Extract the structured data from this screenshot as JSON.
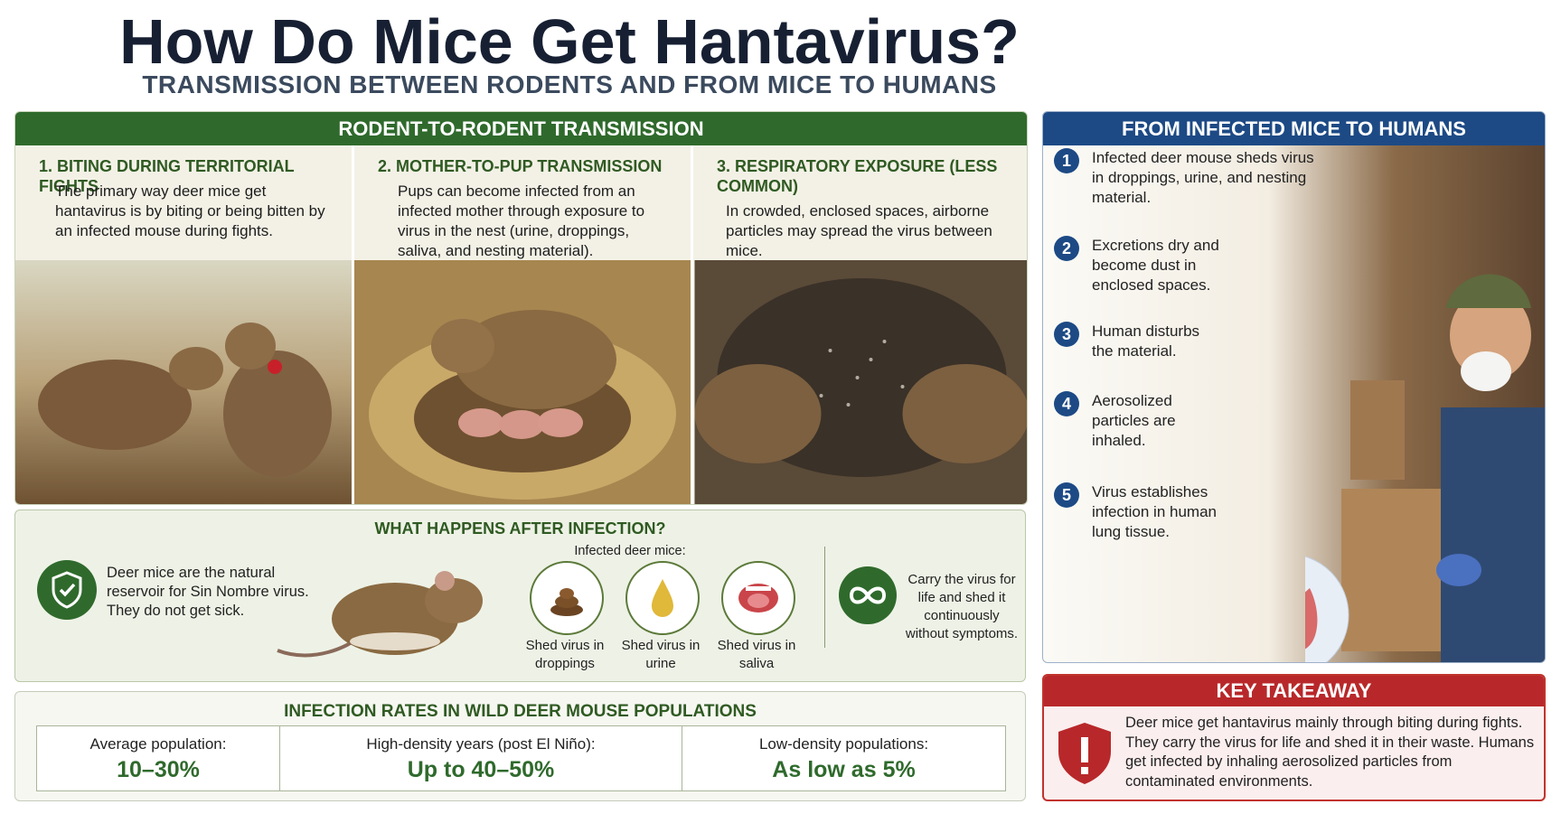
{
  "header": {
    "title": "How Do Mice Get Hantavirus?",
    "subtitle": "TRANSMISSION BETWEEN RODENTS AND FROM MICE TO HUMANS"
  },
  "rodent_section": {
    "title": "RODENT-TO-RODENT TRANSMISSION",
    "panels": [
      {
        "title": "1. BITING DURING TERRITORIAL FIGHTS",
        "text": "The primary way deer mice get hantavirus is by biting or being bitten by an infected mouse during fights."
      },
      {
        "title": "2. MOTHER-TO-PUP TRANSMISSION",
        "text": "Pups can become infected from an infected mother through exposure to virus in the nest (urine, droppings, saliva, and nesting material)."
      },
      {
        "title": "3. RESPIRATORY EXPOSURE (LESS COMMON)",
        "text": "In crowded, enclosed spaces, airborne particles may spread the virus between mice."
      }
    ]
  },
  "after_infection": {
    "title": "WHAT HAPPENS AFTER INFECTION?",
    "main_text": "Deer mice are the natural reservoir for Sin Nombre virus. They do not get sick.",
    "infected_label": "Infected deer mice:",
    "items": [
      {
        "label": "Shed virus in droppings"
      },
      {
        "label": "Shed virus in urine"
      },
      {
        "label": "Shed virus in saliva"
      }
    ],
    "carry_text": "Carry the virus for life and shed it continuously without symptoms."
  },
  "rates": {
    "title": "INFECTION RATES IN WILD DEER MOUSE POPULATIONS",
    "items": [
      {
        "label": "Average population:",
        "value": "10–30%"
      },
      {
        "label": "High-density years (post El Niño):",
        "value": "Up to 40–50%"
      },
      {
        "label": "Low-density populations:",
        "value": "As low as 5%"
      }
    ]
  },
  "humans": {
    "title": "FROM INFECTED MICE TO HUMANS",
    "steps": [
      {
        "number": "1",
        "text": "Infected deer mouse sheds virus in droppings, urine, and nesting material."
      },
      {
        "number": "2",
        "text": "Excretions dry and become dust in enclosed spaces."
      },
      {
        "number": "3",
        "text": "Human disturbs the material."
      },
      {
        "number": "4",
        "text": "Aerosolized particles are inhaled."
      },
      {
        "number": "5",
        "text": "Virus establishes infection in human lung tissue."
      }
    ]
  },
  "takeaway": {
    "title": "KEY TAKEAWAY",
    "text": "Deer mice get hantavirus mainly through biting during fights. They carry the virus for life and shed it in their waste. Humans get infected by inhaling aerosolized particles from contaminated environments."
  }
}
